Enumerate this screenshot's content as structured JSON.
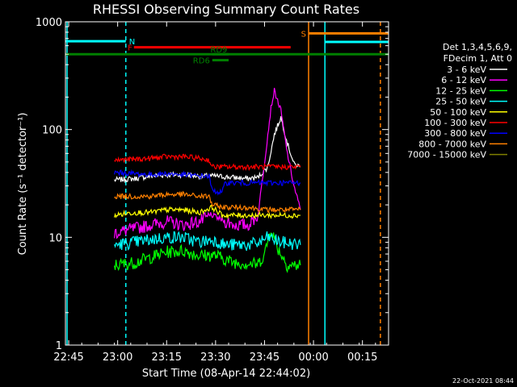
{
  "chart_data": {
    "type": "line",
    "title": "RHESSI Observing Summary Count Rates",
    "xlabel": "Start Time (08-Apr-14 22:44:02)",
    "ylabel": "Count Rate (s⁻¹ detector⁻¹)",
    "yscale": "log",
    "ylim": [
      1,
      1000
    ],
    "xlim": [
      "22:44",
      "00:23"
    ],
    "x_ticks": [
      "22:45",
      "23:00",
      "23:15",
      "23:30",
      "23:45",
      "00:00",
      "00:15"
    ],
    "y_ticks": [
      "1",
      "10",
      "100",
      "1000"
    ],
    "legend_header": [
      "Det 1,3,4,5,6,9,",
      "FDecim 1, Att 0"
    ],
    "legend_placement": "right",
    "series": [
      {
        "name": "3 - 6 keV",
        "color": "#ffffff",
        "x": [
          "22:59",
          "23:05",
          "23:10",
          "23:15",
          "23:20",
          "23:25",
          "23:30",
          "23:35",
          "23:40",
          "23:43",
          "23:46",
          "23:48",
          "23:50",
          "23:52",
          "23:54",
          "23:56"
        ],
        "values": [
          34,
          35,
          37,
          38,
          38,
          37,
          37,
          36,
          35,
          36,
          45,
          90,
          130,
          75,
          48,
          45
        ]
      },
      {
        "name": "6 - 12 keV",
        "color": "#ff00ff",
        "x": [
          "22:59",
          "23:05",
          "23:10",
          "23:15",
          "23:20",
          "23:25",
          "23:29",
          "23:33",
          "23:36",
          "23:40",
          "23:43",
          "23:45",
          "23:47",
          "23:48",
          "23:50",
          "23:52",
          "23:54",
          "23:56"
        ],
        "values": [
          11,
          12,
          13,
          14,
          13,
          14,
          16,
          14,
          13,
          13,
          16,
          50,
          160,
          230,
          150,
          60,
          30,
          18
        ]
      },
      {
        "name": "12 - 25 keV",
        "color": "#00ff00",
        "x": [
          "22:59",
          "23:05",
          "23:10",
          "23:15",
          "23:20",
          "23:25",
          "23:30",
          "23:35",
          "23:40",
          "23:43",
          "23:45",
          "23:47",
          "23:49",
          "23:52",
          "23:56"
        ],
        "values": [
          5.5,
          5.8,
          6.5,
          7.3,
          7.5,
          6.8,
          6.8,
          5.9,
          5.7,
          5.6,
          7,
          12,
          8,
          5.5,
          5.5
        ]
      },
      {
        "name": "25 - 50 keV",
        "color": "#00ffff",
        "x": [
          "22:59",
          "23:05",
          "23:10",
          "23:15",
          "23:20",
          "23:25",
          "23:29",
          "23:33",
          "23:36",
          "23:40",
          "23:43",
          "23:46",
          "23:50",
          "23:56"
        ],
        "values": [
          8.5,
          9,
          9.5,
          10,
          10,
          9,
          9.5,
          8.5,
          8.5,
          8.5,
          8.8,
          10,
          9,
          8.5
        ]
      },
      {
        "name": "50 - 100 keV",
        "color": "#ffff00",
        "x": [
          "22:59",
          "23:05",
          "23:10",
          "23:15",
          "23:20",
          "23:25",
          "23:29",
          "23:32",
          "23:36",
          "23:40",
          "23:45",
          "23:50",
          "23:56"
        ],
        "values": [
          16,
          17,
          17,
          18,
          18,
          17,
          19,
          16,
          16,
          16,
          16,
          16,
          16
        ]
      },
      {
        "name": "100 - 300 keV",
        "color": "#ff0000",
        "x": [
          "22:59",
          "23:05",
          "23:10",
          "23:15",
          "23:20",
          "23:25",
          "23:28",
          "23:29",
          "23:35",
          "23:40",
          "23:45",
          "23:50",
          "23:56"
        ],
        "values": [
          52,
          53,
          54,
          56,
          56,
          54,
          52,
          45,
          45,
          45,
          45,
          45,
          45
        ]
      },
      {
        "name": "300 - 800 keV",
        "color": "#0000ff",
        "x": [
          "22:59",
          "23:05",
          "23:10",
          "23:15",
          "23:20",
          "23:25",
          "23:28",
          "23:29",
          "23:32",
          "23:33",
          "23:40",
          "23:45",
          "23:50",
          "23:56"
        ],
        "values": [
          40,
          39,
          38,
          39,
          38,
          37,
          37,
          27,
          26,
          32,
          32,
          32,
          32,
          32
        ]
      },
      {
        "name": "800 - 7000 keV",
        "color": "#ff8000",
        "x": [
          "22:59",
          "23:05",
          "23:10",
          "23:15",
          "23:20",
          "23:25",
          "23:28",
          "23:29",
          "23:32",
          "23:33",
          "23:40",
          "23:45",
          "23:50",
          "23:56"
        ],
        "values": [
          24,
          24,
          24,
          25,
          25,
          24,
          24,
          20,
          19,
          19,
          19,
          18,
          18,
          18
        ]
      },
      {
        "name": "7000 - 15000 keV",
        "color": "#808000",
        "x": [],
        "values": []
      }
    ],
    "vertical_lines": [
      {
        "x": "22:44.5",
        "color": "#00ffff",
        "style": "solid"
      },
      {
        "x": "23:02.5",
        "color": "#00ffff",
        "style": "dashed"
      },
      {
        "x": "23:58.5",
        "color": "#ff8000",
        "style": "solid"
      },
      {
        "x": "00:03.5",
        "color": "#00ffff",
        "style": "solid"
      },
      {
        "x": "00:20.5",
        "color": "#ff8000",
        "style": "dashed"
      }
    ],
    "bars": [
      {
        "label": "N",
        "color": "#00ffff",
        "x0": "22:44",
        "x1": "23:02.5",
        "y": 660
      },
      {
        "label": "F",
        "color": "#ff0000",
        "x0": "23:05",
        "x1": "23:53",
        "y": 580
      },
      {
        "label": "",
        "color": "#008000",
        "x0": "22:44",
        "x1": "00:23",
        "y": 500
      },
      {
        "label": "RD9",
        "color": "#008000",
        "x0": "23:29",
        "x1": "23:34",
        "y": 500
      },
      {
        "label": "RD6",
        "color": "#008000",
        "x0": "23:29",
        "x1": "23:34",
        "y": 440
      },
      {
        "label": "S",
        "color": "#ff8000",
        "x0": "23:58.5",
        "x1": "00:23",
        "y": 780
      },
      {
        "label": "",
        "color": "#00ffff",
        "x0": "00:03.5",
        "x1": "00:23",
        "y": 650
      }
    ]
  },
  "footer_date": "22-Oct-2021 08:44"
}
